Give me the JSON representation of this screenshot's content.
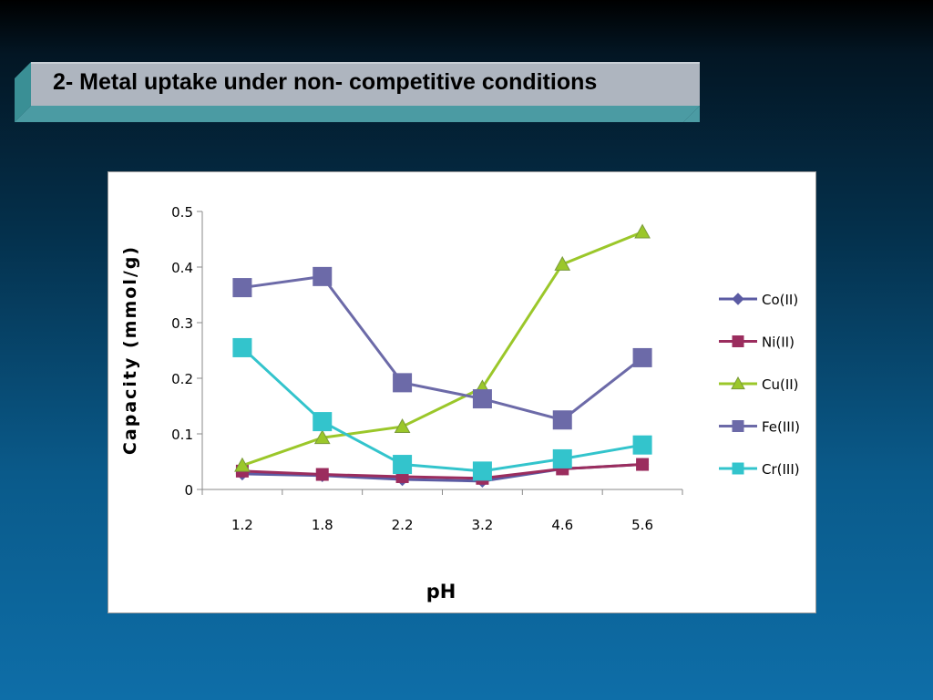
{
  "slide": {
    "title": "2- Metal uptake under non- competitive conditions"
  },
  "chart_data": {
    "type": "line",
    "title": "",
    "xlabel": "pH",
    "ylabel": "Capacity (mmol/g)",
    "categories": [
      "1.2",
      "1.8",
      "2.2",
      "3.2",
      "4.6",
      "5.6"
    ],
    "ylim": [
      0,
      0.5
    ],
    "yticks": [
      "0",
      "0.1",
      "0.2",
      "0.3",
      "0.4",
      "0.5"
    ],
    "grid": false,
    "legend_position": "right",
    "series": [
      {
        "name": "Co(II)",
        "marker": "diamond",
        "color": "#5b5ba3",
        "values": [
          0.028,
          0.025,
          0.018,
          0.015,
          0.037,
          0.045
        ]
      },
      {
        "name": "Ni(II)",
        "marker": "square",
        "color": "#9b2d5e",
        "values": [
          0.033,
          0.027,
          0.023,
          0.02,
          0.037,
          0.045
        ]
      },
      {
        "name": "Cu(II)",
        "marker": "triangle",
        "color": "#9bc72a",
        "values": [
          0.043,
          0.093,
          0.113,
          0.183,
          0.405,
          0.463
        ]
      },
      {
        "name": "Fe(III)",
        "marker": "square",
        "color": "#6c6aa8",
        "values": [
          0.363,
          0.383,
          0.192,
          0.163,
          0.125,
          0.237
        ]
      },
      {
        "name": "Cr(III)",
        "marker": "square",
        "color": "#33c4cc",
        "values": [
          0.255,
          0.122,
          0.045,
          0.033,
          0.055,
          0.08
        ]
      }
    ]
  }
}
